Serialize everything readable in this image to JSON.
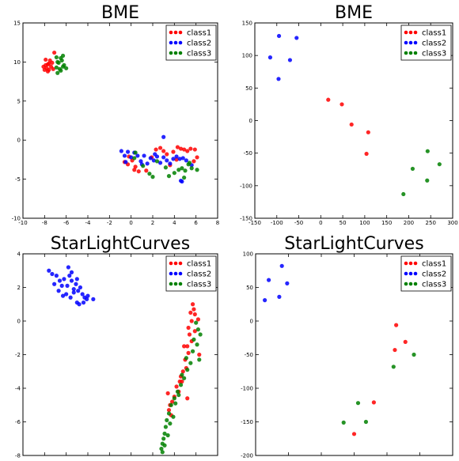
{
  "colors": {
    "class1": "#ff0000",
    "class2": "#0000ff",
    "class3": "#008000"
  },
  "chart_data": [
    {
      "type": "scatter",
      "title": "BME",
      "xlim": [
        -10,
        8
      ],
      "ylim": [
        -10,
        15
      ],
      "xticks": [
        -10,
        -8,
        -6,
        -4,
        -2,
        0,
        2,
        4,
        6,
        8
      ],
      "yticks": [
        -10,
        -5,
        0,
        5,
        10,
        15
      ],
      "legend": "top-right",
      "series": [
        {
          "name": "class1",
          "points": [
            [
              -7.8,
              9.2
            ],
            [
              -8.0,
              9.0
            ],
            [
              -7.9,
              9.6
            ],
            [
              -7.6,
              9.8
            ],
            [
              -7.4,
              9.4
            ],
            [
              -7.7,
              8.8
            ],
            [
              -7.2,
              9.1
            ],
            [
              -7.5,
              10.2
            ],
            [
              -7.1,
              11.2
            ],
            [
              -7.9,
              10.3
            ],
            [
              -7.3,
              9.9
            ],
            [
              -8.1,
              9.4
            ],
            [
              -7.6,
              9.0
            ],
            [
              -7.7,
              9.7
            ],
            [
              -0.6,
              -2.8
            ],
            [
              -0.3,
              -3.1
            ],
            [
              0.1,
              -2.6
            ],
            [
              0.3,
              -3.8
            ],
            [
              0.7,
              -4.0
            ],
            [
              1.4,
              -3.9
            ],
            [
              1.9,
              -2.2
            ],
            [
              2.3,
              -1.2
            ],
            [
              2.7,
              -1.0
            ],
            [
              3.0,
              -1.4
            ],
            [
              3.3,
              -1.8
            ],
            [
              3.6,
              -3.2
            ],
            [
              3.9,
              -1.5
            ],
            [
              4.2,
              -2.5
            ],
            [
              4.6,
              -1.1
            ],
            [
              4.9,
              -1.2
            ],
            [
              5.2,
              -1.4
            ],
            [
              5.5,
              -1.1
            ],
            [
              5.9,
              -1.2
            ],
            [
              6.1,
              -2.2
            ],
            [
              5.8,
              -2.7
            ],
            [
              -0.2,
              -2.1
            ],
            [
              0.4,
              -3.4
            ],
            [
              4.3,
              -0.9
            ]
          ]
        },
        {
          "name": "class2",
          "points": [
            [
              -0.9,
              -1.4
            ],
            [
              -0.6,
              -2.0
            ],
            [
              -0.3,
              -1.5
            ],
            [
              0.0,
              -2.2
            ],
            [
              0.3,
              -1.6
            ],
            [
              0.6,
              -2.0
            ],
            [
              0.9,
              -2.7
            ],
            [
              1.2,
              -2.0
            ],
            [
              1.5,
              -3.0
            ],
            [
              1.8,
              -2.3
            ],
            [
              2.1,
              -2.6
            ],
            [
              2.4,
              -2.1
            ],
            [
              2.7,
              -2.9
            ],
            [
              3.0,
              -2.2
            ],
            [
              3.0,
              0.4
            ],
            [
              3.3,
              -2.6
            ],
            [
              3.6,
              -3.0
            ],
            [
              3.9,
              -2.4
            ],
            [
              4.2,
              -2.1
            ],
            [
              4.5,
              -2.4
            ],
            [
              4.8,
              -2.3
            ],
            [
              5.1,
              -2.6
            ],
            [
              4.6,
              -5.2
            ],
            [
              4.7,
              -5.3
            ],
            [
              5.6,
              -3.2
            ],
            [
              -0.5,
              -2.8
            ],
            [
              1.0,
              -3.1
            ],
            [
              2.2,
              -1.8
            ]
          ]
        },
        {
          "name": "class3",
          "points": [
            [
              -6.9,
              9.3
            ],
            [
              -6.7,
              9.9
            ],
            [
              -6.5,
              10.5
            ],
            [
              -6.3,
              10.8
            ],
            [
              -6.8,
              8.6
            ],
            [
              -6.6,
              9.1
            ],
            [
              -6.2,
              9.6
            ],
            [
              -6.4,
              10.2
            ],
            [
              -6.0,
              9.2
            ],
            [
              -6.9,
              10.6
            ],
            [
              -6.5,
              8.9
            ],
            [
              -6.3,
              9.4
            ],
            [
              -6.8,
              10.0
            ],
            [
              0.4,
              -1.6
            ],
            [
              1.1,
              -3.3
            ],
            [
              1.7,
              -4.3
            ],
            [
              2.0,
              -4.7
            ],
            [
              2.4,
              -2.7
            ],
            [
              3.2,
              -3.5
            ],
            [
              3.5,
              -4.6
            ],
            [
              4.0,
              -4.2
            ],
            [
              4.4,
              -3.8
            ],
            [
              4.7,
              -3.6
            ],
            [
              5.0,
              -3.9
            ],
            [
              5.3,
              -3.1
            ],
            [
              5.6,
              -3.6
            ],
            [
              6.1,
              -3.8
            ],
            [
              5.4,
              -2.9
            ],
            [
              4.9,
              -4.8
            ],
            [
              0.3,
              -2.3
            ]
          ]
        }
      ]
    },
    {
      "type": "scatter",
      "title": "BME",
      "xlim": [
        -150,
        300
      ],
      "ylim": [
        -150,
        150
      ],
      "xticks": [
        -150,
        -100,
        -50,
        0,
        50,
        100,
        150,
        200,
        250,
        300
      ],
      "yticks": [
        -150,
        -100,
        -50,
        0,
        50,
        100,
        150
      ],
      "legend": "top-right",
      "series": [
        {
          "name": "class1",
          "points": [
            [
              17,
              32
            ],
            [
              48,
              25
            ],
            [
              70,
              -6
            ],
            [
              108,
              -18
            ],
            [
              104,
              -51
            ]
          ]
        },
        {
          "name": "class2",
          "points": [
            [
              -95,
              130
            ],
            [
              -55,
              127
            ],
            [
              -115,
              97
            ],
            [
              -70,
              93
            ],
            [
              -96,
              64
            ]
          ]
        },
        {
          "name": "class3",
          "points": [
            [
              243,
              -47
            ],
            [
              270,
              -67
            ],
            [
              209,
              -74
            ],
            [
              242,
              -92
            ],
            [
              188,
              -113
            ]
          ]
        }
      ]
    },
    {
      "type": "scatter",
      "title": "StarLightCurves",
      "xlim": [
        -10,
        8
      ],
      "ylim": [
        -8,
        4
      ],
      "xticks": [
        -10,
        -8,
        -6,
        -4,
        -2,
        0,
        2,
        4,
        6,
        8
      ],
      "yticks": [
        -8,
        -6,
        -4,
        -2,
        0,
        2,
        4
      ],
      "legend": "top-right",
      "series": [
        {
          "name": "class1",
          "points": [
            [
              5.7,
              1.0
            ],
            [
              5.8,
              0.7
            ],
            [
              5.9,
              0.4
            ],
            [
              5.5,
              0.5
            ],
            [
              5.6,
              0.0
            ],
            [
              6.2,
              0.1
            ],
            [
              5.3,
              -0.4
            ],
            [
              5.4,
              -0.8
            ],
            [
              5.6,
              -1.2
            ],
            [
              5.2,
              -1.5
            ],
            [
              5.3,
              -1.9
            ],
            [
              5.0,
              -2.3
            ],
            [
              5.1,
              -2.8
            ],
            [
              4.8,
              -3.0
            ],
            [
              4.6,
              -3.3
            ],
            [
              4.5,
              -3.6
            ],
            [
              4.2,
              -3.9
            ],
            [
              4.4,
              -4.2
            ],
            [
              4.0,
              -4.5
            ],
            [
              3.8,
              -4.8
            ],
            [
              3.6,
              -5.0
            ],
            [
              3.5,
              -5.3
            ],
            [
              3.7,
              -5.6
            ],
            [
              3.4,
              -4.3
            ],
            [
              4.7,
              -3.6
            ],
            [
              5.9,
              -0.6
            ],
            [
              6.3,
              -2.0
            ],
            [
              4.9,
              -1.5
            ],
            [
              5.2,
              -4.6
            ]
          ]
        },
        {
          "name": "class2",
          "points": [
            [
              -7.6,
              3.0
            ],
            [
              -7.3,
              2.8
            ],
            [
              -6.9,
              2.7
            ],
            [
              -6.6,
              2.4
            ],
            [
              -6.2,
              2.5
            ],
            [
              -5.8,
              3.2
            ],
            [
              -5.5,
              2.9
            ],
            [
              -5.9,
              2.1
            ],
            [
              -5.5,
              2.4
            ],
            [
              -5.3,
              1.9
            ],
            [
              -5.1,
              2.2
            ],
            [
              -4.9,
              1.8
            ],
            [
              -4.7,
              2.0
            ],
            [
              -4.5,
              1.6
            ],
            [
              -4.3,
              1.4
            ],
            [
              -4.1,
              1.3
            ],
            [
              -3.5,
              1.3
            ],
            [
              -4.8,
              1.0
            ],
            [
              -5.0,
              1.1
            ],
            [
              -5.6,
              1.4
            ],
            [
              -6.0,
              1.6
            ],
            [
              -6.7,
              1.8
            ],
            [
              -6.4,
              2.1
            ],
            [
              -7.1,
              2.2
            ],
            [
              -4.4,
              1.1
            ],
            [
              -5.3,
              1.7
            ],
            [
              -5.7,
              2.7
            ],
            [
              -6.3,
              1.5
            ],
            [
              -4.0,
              1.5
            ],
            [
              -5.0,
              2.5
            ]
          ]
        },
        {
          "name": "class3",
          "points": [
            [
              6.0,
              -0.1
            ],
            [
              6.2,
              -0.5
            ],
            [
              6.4,
              -0.8
            ],
            [
              5.8,
              -1.1
            ],
            [
              6.1,
              -1.4
            ],
            [
              5.7,
              -1.8
            ],
            [
              6.3,
              -2.3
            ],
            [
              5.5,
              -2.5
            ],
            [
              5.2,
              -2.9
            ],
            [
              4.9,
              -3.4
            ],
            [
              4.6,
              -3.8
            ],
            [
              4.3,
              -4.2
            ],
            [
              4.0,
              -4.6
            ],
            [
              3.7,
              -5.0
            ],
            [
              3.5,
              -5.5
            ],
            [
              3.3,
              -5.9
            ],
            [
              3.2,
              -6.3
            ],
            [
              3.1,
              -6.7
            ],
            [
              3.0,
              -7.0
            ],
            [
              2.9,
              -7.3
            ],
            [
              2.8,
              -7.6
            ],
            [
              2.9,
              -7.8
            ],
            [
              3.1,
              -7.4
            ],
            [
              3.4,
              -6.8
            ],
            [
              3.6,
              -6.1
            ],
            [
              3.9,
              -5.7
            ],
            [
              4.1,
              -4.9
            ],
            [
              4.4,
              -4.4
            ],
            [
              4.7,
              -3.2
            ],
            [
              5.1,
              -2.2
            ]
          ]
        }
      ]
    },
    {
      "type": "scatter",
      "title": "StarLightCurves",
      "xlim": [
        -100,
        200
      ],
      "ylim": [
        -200,
        100
      ],
      "xticks": [
        -100,
        -50,
        0,
        50,
        100,
        150,
        200
      ],
      "yticks": [
        -200,
        -150,
        -100,
        -50,
        0,
        50,
        100
      ],
      "legend": "top-right",
      "series": [
        {
          "name": "class1",
          "points": [
            [
              114,
              -6
            ],
            [
              128,
              -31
            ],
            [
              112,
              -43
            ],
            [
              80,
              -121
            ],
            [
              50,
              -168
            ]
          ]
        },
        {
          "name": "class2",
          "points": [
            [
              -60,
              82
            ],
            [
              -80,
              61
            ],
            [
              -52,
              56
            ],
            [
              -64,
              36
            ],
            [
              -86,
              31
            ]
          ]
        },
        {
          "name": "class3",
          "points": [
            [
              141,
              -50
            ],
            [
              110,
              -68
            ],
            [
              56,
              -122
            ],
            [
              68,
              -150
            ],
            [
              34,
              -151
            ]
          ]
        }
      ]
    }
  ]
}
